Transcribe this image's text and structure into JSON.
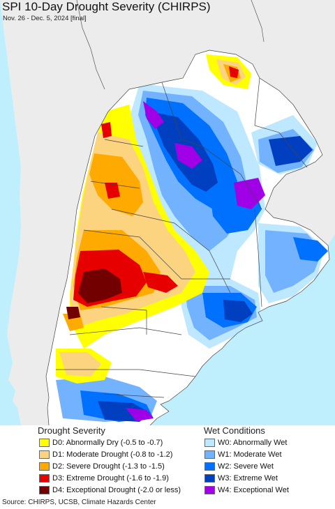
{
  "title": "SPI 10-Day Drought Severity (CHIRPS)",
  "subtitle": "Nov. 26 - Dec. 5, 2024 [final]",
  "legend": {
    "drought_heading": "Drought Severity",
    "wet_heading": "Wet Conditions",
    "drought_items": [
      {
        "label": "D0: Abnormally Dry (-0.5 to -0.7)",
        "color": "#ffff00"
      },
      {
        "label": "D1: Moderate Drought (-0.8 to -1.2)",
        "color": "#fcd37f"
      },
      {
        "label": "D2: Severe Drought (-1.3 to -1.5)",
        "color": "#ffaa00"
      },
      {
        "label": "D3: Extreme Drought (-1.6 to -1.9)",
        "color": "#e60000"
      },
      {
        "label": "D4: Exceptional Drought (-2.0 or less)",
        "color": "#730000"
      }
    ],
    "wet_items": [
      {
        "label": "W0: Abnormally Wet",
        "color": "#bee8ff"
      },
      {
        "label": "W1: Moderate Wet",
        "color": "#73b2ff"
      },
      {
        "label": "W2: Severe Wet",
        "color": "#0070ff"
      },
      {
        "label": "W3: Extreme Wet",
        "color": "#0040c0"
      },
      {
        "label": "W4: Exceptional Wet",
        "color": "#a000e6"
      }
    ]
  },
  "colors": {
    "ocean": "#bfeffd",
    "outside_land": "#ececec",
    "normal_land": "#ffffff",
    "border": "#444444"
  },
  "source": "Source: CHIRPS, UCSB, Climate Hazards Center"
}
